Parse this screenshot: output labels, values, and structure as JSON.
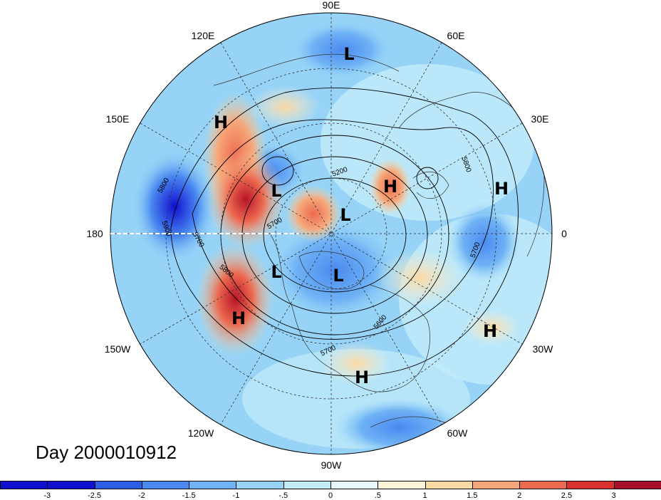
{
  "title": "Day 2000010912",
  "longitude_labels": {
    "top": "90E",
    "top_left": "120E",
    "top_right": "60E",
    "upper_left": "150E",
    "upper_right": "30E",
    "left": "180",
    "right": "0",
    "lower_left": "150W",
    "lower_right": "30W",
    "bottom_left": "120W",
    "bottom_right": "60W",
    "bottom": "90W"
  },
  "pressure_centers": [
    {
      "type": "L",
      "label": "L"
    },
    {
      "type": "H",
      "label": "H"
    },
    {
      "type": "L",
      "label": "L"
    },
    {
      "type": "H",
      "label": "H"
    },
    {
      "type": "L",
      "label": "L"
    },
    {
      "type": "H",
      "label": "H"
    },
    {
      "type": "L",
      "label": "L"
    },
    {
      "type": "L",
      "label": "L"
    },
    {
      "type": "H",
      "label": "H"
    },
    {
      "type": "H",
      "label": "H"
    },
    {
      "type": "H",
      "label": "H"
    }
  ],
  "contour_labels": [
    "5200",
    "5800",
    "5800",
    "5900",
    "5700",
    "5700",
    "5800",
    "5700",
    "5600",
    "5700",
    "5700"
  ],
  "colorbar": {
    "ticks": [
      "-3",
      "-2.5",
      "-2",
      "-1.5",
      "-1",
      "-.5",
      "0",
      ".5",
      "1",
      "1.5",
      "2",
      "2.5",
      "3"
    ],
    "colors": [
      "#1010d0",
      "#2d5fe6",
      "#4a8af0",
      "#6fb2f5",
      "#96d3f7",
      "#c3ecf9",
      "#e6f8fb",
      "#fdf3d6",
      "#fbd9a2",
      "#f6a77a",
      "#ec6a50",
      "#d93030",
      "#a8102a"
    ]
  }
}
